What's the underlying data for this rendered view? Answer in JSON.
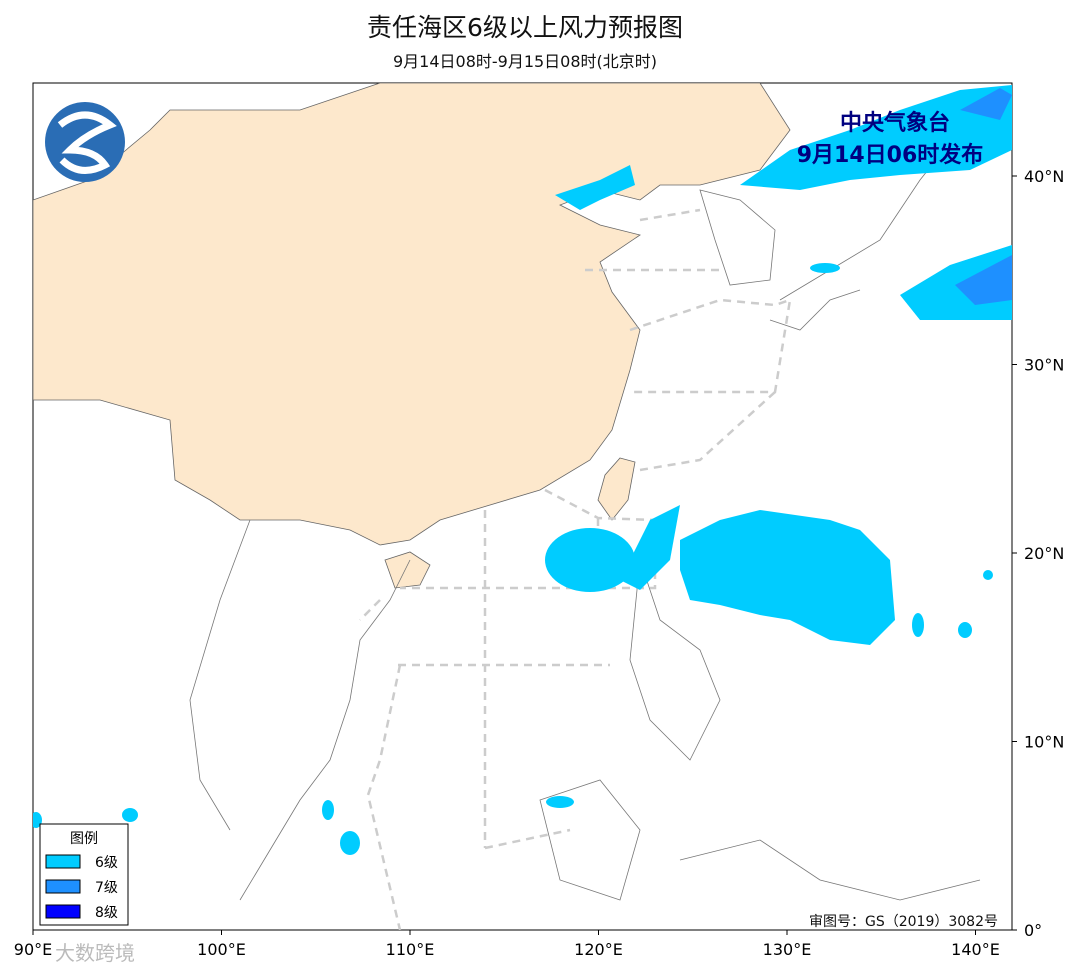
{
  "header": {
    "title": "责任海区6级以上风力预报图",
    "subtitle": "9月14日08时-9月15日08时(北京时)"
  },
  "issuer": {
    "name": "中央气象台",
    "time": "9月14日06时发布"
  },
  "legend": {
    "title": "图例",
    "items": [
      {
        "label": "6级",
        "color": "#00ccff"
      },
      {
        "label": "7级",
        "color": "#1e90ff"
      },
      {
        "label": "8级",
        "color": "#0000ff"
      }
    ]
  },
  "axes": {
    "lon_ticks": [
      {
        "value": 90,
        "label": "90°E"
      },
      {
        "value": 100,
        "label": "100°E"
      },
      {
        "value": 110,
        "label": "110°E"
      },
      {
        "value": 120,
        "label": "120°E"
      },
      {
        "value": 130,
        "label": "130°E"
      },
      {
        "value": 140,
        "label": "140°E"
      }
    ],
    "lat_ticks": [
      {
        "value": 0,
        "label": "0°"
      },
      {
        "value": 10,
        "label": "10°N"
      },
      {
        "value": 20,
        "label": "20°N"
      },
      {
        "value": 30,
        "label": "30°N"
      },
      {
        "value": 40,
        "label": "40°N"
      }
    ]
  },
  "approval": "审图号：GS（2019）3082号",
  "watermark": "大数跨境"
}
